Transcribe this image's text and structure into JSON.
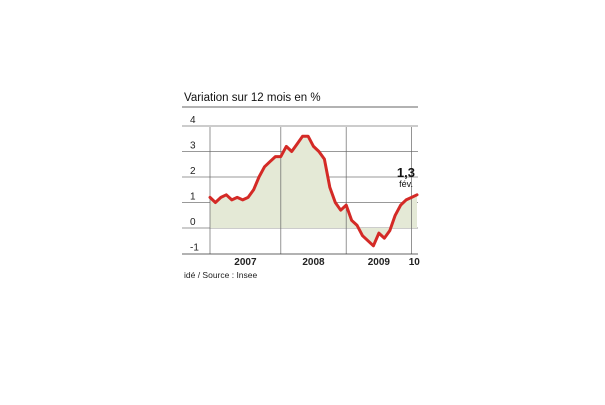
{
  "chart_data": {
    "type": "area",
    "title": "Variation sur 12 mois en %",
    "source": "idé / Source : Insee",
    "xlabel": "",
    "ylabel": "",
    "ylim": [
      -1,
      4
    ],
    "y_ticks": [
      4,
      3,
      2,
      1,
      0,
      -1
    ],
    "x_tick_labels": [
      "2007",
      "2008",
      "2009",
      "10"
    ],
    "grid": true,
    "series": [
      {
        "color": "#d42a26",
        "fill": "#e4e9d6",
        "x": [
          "2006-12",
          "2007-01",
          "2007-02",
          "2007-03",
          "2007-04",
          "2007-05",
          "2007-06",
          "2007-07",
          "2007-08",
          "2007-09",
          "2007-10",
          "2007-11",
          "2007-12",
          "2008-01",
          "2008-02",
          "2008-03",
          "2008-04",
          "2008-05",
          "2008-06",
          "2008-07",
          "2008-08",
          "2008-09",
          "2008-10",
          "2008-11",
          "2008-12",
          "2009-01",
          "2009-02",
          "2009-03",
          "2009-04",
          "2009-05",
          "2009-06",
          "2009-07",
          "2009-08",
          "2009-09",
          "2009-10",
          "2009-11",
          "2009-12",
          "2010-01",
          "2010-02"
        ],
        "values": [
          1.2,
          1.0,
          1.2,
          1.3,
          1.1,
          1.2,
          1.1,
          1.2,
          1.5,
          2.0,
          2.4,
          2.6,
          2.8,
          2.8,
          3.2,
          3.0,
          3.3,
          3.6,
          3.6,
          3.2,
          3.0,
          2.7,
          1.6,
          1.0,
          0.7,
          0.9,
          0.3,
          0.1,
          -0.3,
          -0.5,
          -0.7,
          -0.2,
          -0.4,
          -0.1,
          0.5,
          0.9,
          1.1,
          1.2,
          1.3
        ]
      }
    ],
    "annotation": {
      "value": "1,3",
      "label": "fév."
    }
  }
}
